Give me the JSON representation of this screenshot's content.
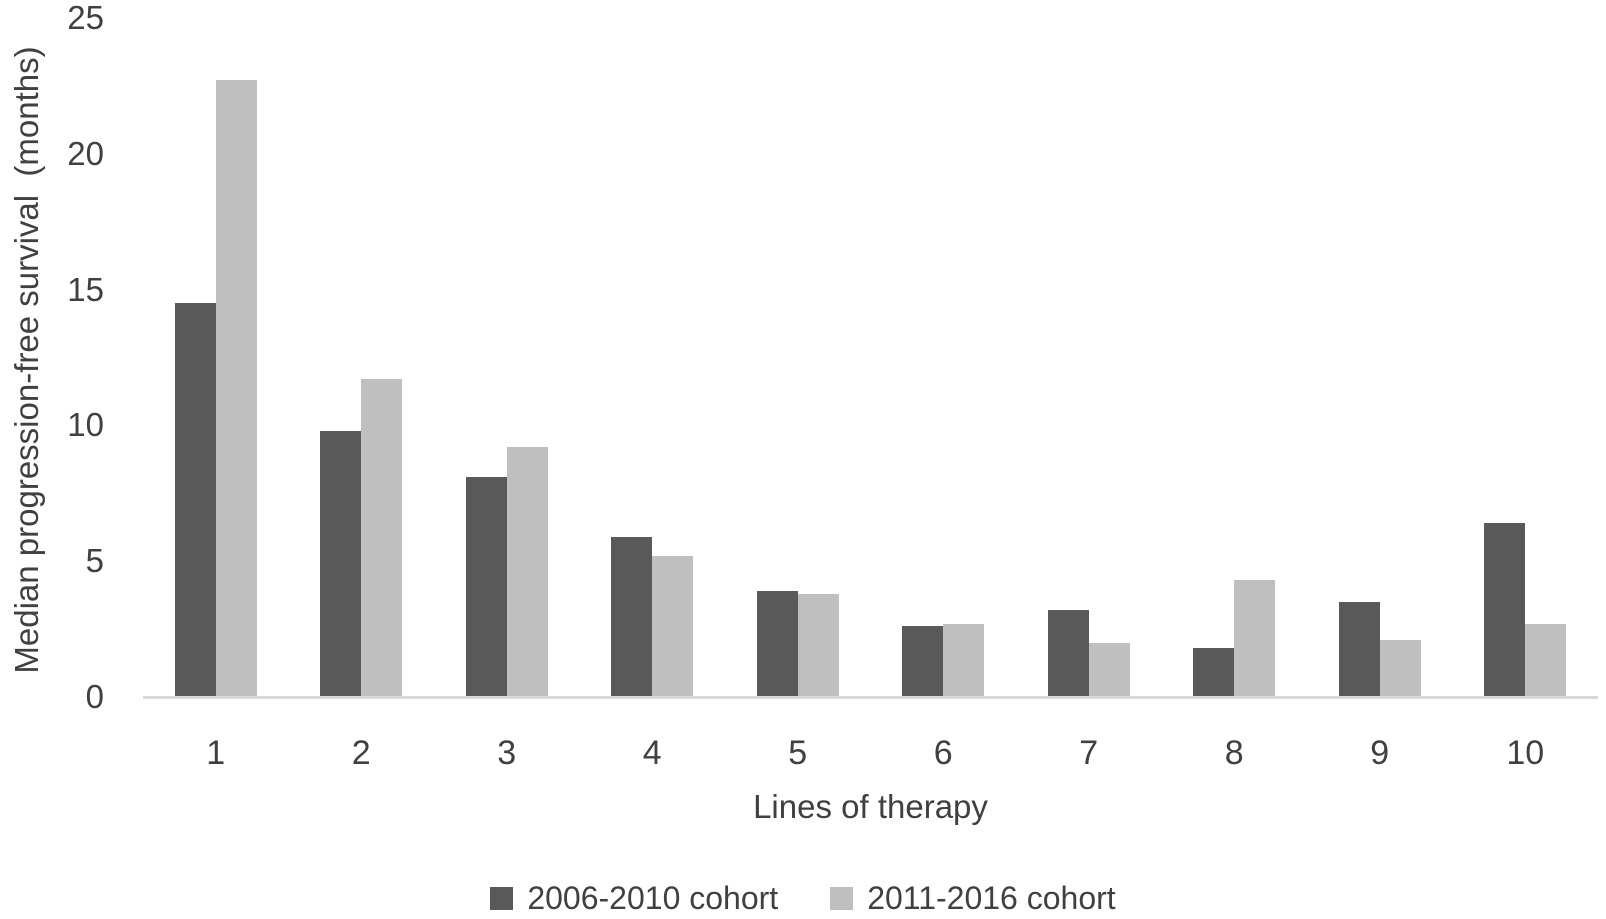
{
  "chart_data": {
    "type": "bar",
    "title": "",
    "xlabel": "Lines of therapy",
    "ylabel": "Median progression-free survival  (months)",
    "categories": [
      "1",
      "2",
      "3",
      "4",
      "5",
      "6",
      "7",
      "8",
      "9",
      "10"
    ],
    "series": [
      {
        "name": "2006-2010 cohort",
        "color": "#595959",
        "values": [
          14.5,
          9.8,
          8.1,
          5.9,
          3.9,
          2.6,
          3.2,
          1.8,
          3.5,
          6.4
        ]
      },
      {
        "name": "2011-2016 cohort",
        "color": "#bfbfbf",
        "values": [
          22.7,
          11.7,
          9.2,
          5.2,
          3.8,
          2.7,
          2.0,
          4.3,
          2.1,
          2.7
        ]
      }
    ],
    "ylim": [
      0,
      25
    ],
    "yticks": [
      0,
      5,
      10,
      15,
      20,
      25
    ],
    "grid": false,
    "legend_position": "bottom"
  },
  "colors": {
    "text": "#404040",
    "axis_line": "#d9d9d9",
    "background": "#ffffff"
  }
}
